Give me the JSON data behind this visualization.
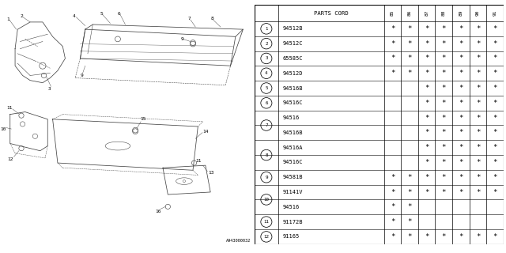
{
  "diagram_code": "A943000032",
  "bg_color": "#ffffff",
  "line_color": "#444444",
  "col_header": "PARTS CORD",
  "year_cols": [
    "85",
    "86",
    "87",
    "88",
    "89",
    "90",
    "91"
  ],
  "row_data": [
    {
      "num": "1",
      "part": "94512B",
      "show_num": true,
      "stars": [
        1,
        1,
        1,
        1,
        1,
        1,
        1
      ]
    },
    {
      "num": "2",
      "part": "94512C",
      "show_num": true,
      "stars": [
        1,
        1,
        1,
        1,
        1,
        1,
        1
      ]
    },
    {
      "num": "3",
      "part": "65585C",
      "show_num": true,
      "stars": [
        1,
        1,
        1,
        1,
        1,
        1,
        1
      ]
    },
    {
      "num": "4",
      "part": "94512D",
      "show_num": true,
      "stars": [
        1,
        1,
        1,
        1,
        1,
        1,
        1
      ]
    },
    {
      "num": "5",
      "part": "94516B",
      "show_num": true,
      "stars": [
        0,
        0,
        1,
        1,
        1,
        1,
        1
      ]
    },
    {
      "num": "6",
      "part": "94516C",
      "show_num": true,
      "stars": [
        0,
        0,
        1,
        1,
        1,
        1,
        1
      ]
    },
    {
      "num": "7",
      "part": "94516",
      "show_num": true,
      "stars": [
        0,
        0,
        1,
        1,
        1,
        1,
        1
      ]
    },
    {
      "num": "7",
      "part": "94516B",
      "show_num": false,
      "stars": [
        0,
        0,
        1,
        1,
        1,
        1,
        1
      ]
    },
    {
      "num": "8",
      "part": "94516A",
      "show_num": true,
      "stars": [
        0,
        0,
        1,
        1,
        1,
        1,
        1
      ]
    },
    {
      "num": "8",
      "part": "94516C",
      "show_num": false,
      "stars": [
        0,
        0,
        1,
        1,
        1,
        1,
        1
      ]
    },
    {
      "num": "9",
      "part": "94581B",
      "show_num": true,
      "stars": [
        1,
        1,
        1,
        1,
        1,
        1,
        1
      ]
    },
    {
      "num": "10",
      "part": "91141V",
      "show_num": true,
      "stars": [
        1,
        1,
        1,
        1,
        1,
        1,
        1
      ]
    },
    {
      "num": "10",
      "part": "94516",
      "show_num": false,
      "stars": [
        1,
        1,
        0,
        0,
        0,
        0,
        0
      ]
    },
    {
      "num": "11",
      "part": "91172B",
      "show_num": true,
      "stars": [
        1,
        1,
        0,
        0,
        0,
        0,
        0
      ]
    },
    {
      "num": "12",
      "part": "91165",
      "show_num": true,
      "stars": [
        1,
        1,
        1,
        1,
        1,
        1,
        1
      ]
    }
  ]
}
